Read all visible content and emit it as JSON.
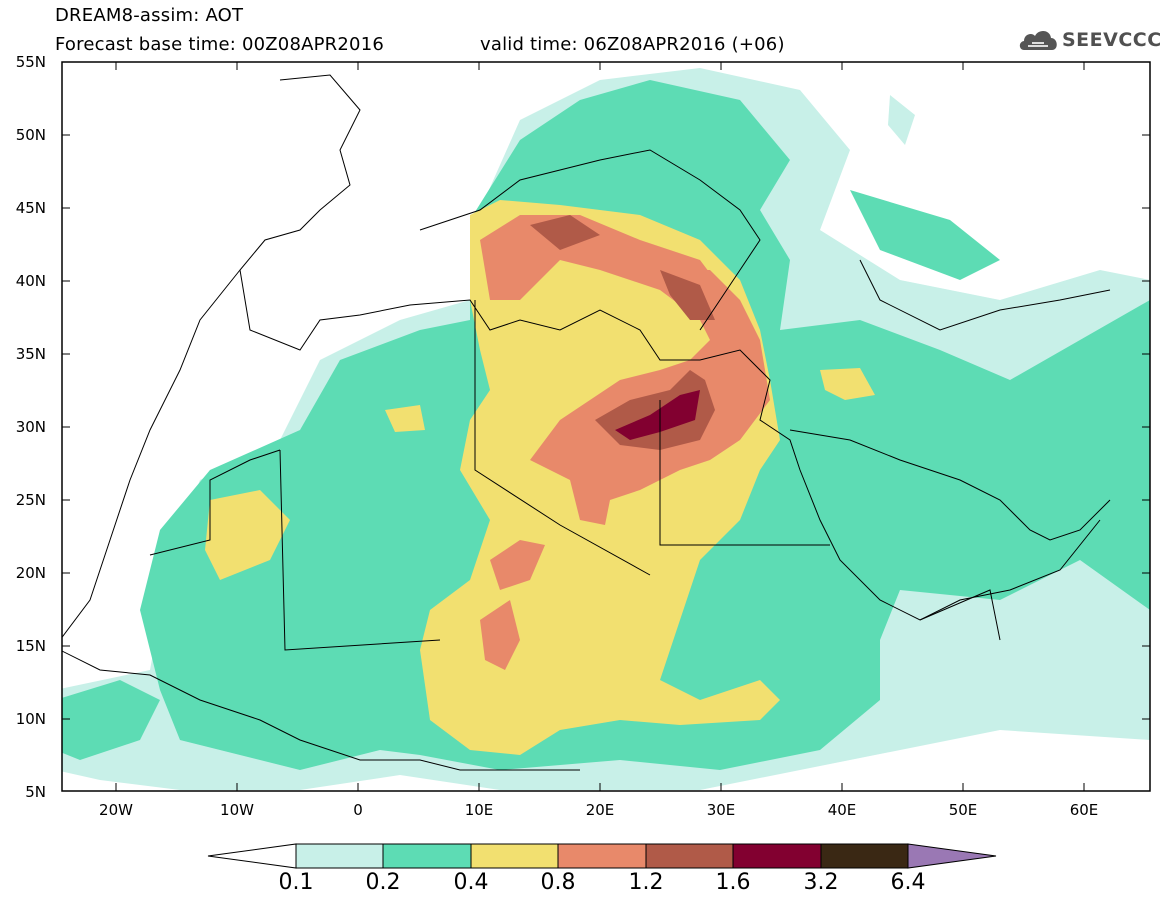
{
  "header": {
    "title_line1": "DREAM8-assim: AOT",
    "title_line2": "Forecast base time: 00Z08APR2016",
    "valid_time": "valid time: 06Z08APR2016 (+06)",
    "logo_text": "SEEVCCC"
  },
  "axes": {
    "lat_labels": [
      "55N",
      "50N",
      "45N",
      "40N",
      "35N",
      "30N",
      "25N",
      "20N",
      "15N",
      "10N",
      "5N"
    ],
    "lon_labels": [
      "20W",
      "10W",
      "0",
      "10E",
      "20E",
      "30E",
      "40E",
      "50E",
      "60E"
    ],
    "lat_range": [
      5,
      55
    ],
    "lon_range": [
      -25,
      65
    ]
  },
  "colorbar": {
    "labels": [
      "0.1",
      "0.2",
      "0.4",
      "0.8",
      "1.2",
      "1.6",
      "3.2",
      "6.4"
    ],
    "colors": [
      "#c8f0e8",
      "#5ddcb4",
      "#f2e070",
      "#e8896a",
      "#b05a48",
      "#820030",
      "#3a2814",
      "#9a78b4"
    ]
  }
}
